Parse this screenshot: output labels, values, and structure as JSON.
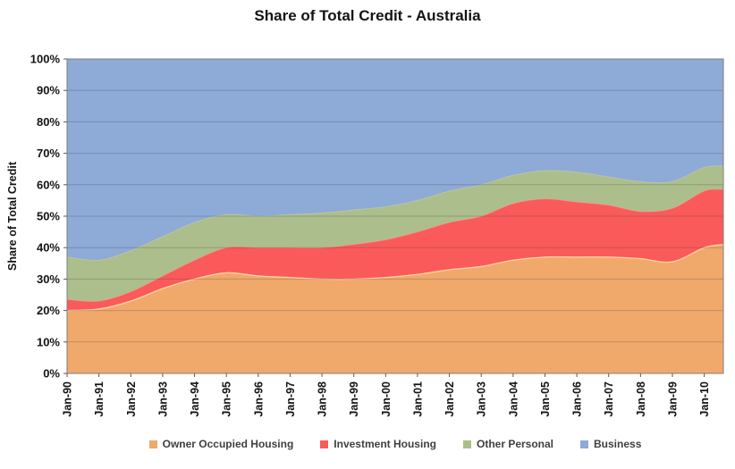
{
  "title": "Share of Total Credit - Australia",
  "y_axis_title": "Share of Total Credit",
  "colors": {
    "owner_occupied": "#F0A96B",
    "investment": "#FA5A5A",
    "other_personal": "#ACBE8B",
    "business": "#8EAAD6",
    "grid_overlay": "rgba(70,70,70,0.28)",
    "plot_border": "#7F7F7F",
    "tick": "#595959",
    "text": "#141414"
  },
  "chart_data": {
    "type": "area",
    "stacked": true,
    "title": "Share of Total Credit - Australia",
    "xlabel": "",
    "ylabel": "Share of Total Credit",
    "ylim": [
      0,
      100
    ],
    "grid": "horizontal",
    "legend_position": "bottom",
    "x": [
      1990,
      1991,
      1992,
      1993,
      1994,
      1995,
      1996,
      1997,
      1998,
      1999,
      2000,
      2001,
      2002,
      2003,
      2004,
      2005,
      2006,
      2007,
      2008,
      2009,
      2010,
      2010.6
    ],
    "x_tick_labels": [
      "Jan-90",
      "Jan-91",
      "Jan-92",
      "Jan-93",
      "Jan-94",
      "Jan-95",
      "Jan-96",
      "Jan-97",
      "Jan-98",
      "Jan-99",
      "Jan-00",
      "Jan-01",
      "Jan-02",
      "Jan-03",
      "Jan-04",
      "Jan-05",
      "Jan-06",
      "Jan-07",
      "Jan-08",
      "Jan-09",
      "Jan-10"
    ],
    "y_tick_labels": [
      "0%",
      "10%",
      "20%",
      "30%",
      "40%",
      "50%",
      "60%",
      "70%",
      "80%",
      "90%",
      "100%"
    ],
    "series": [
      {
        "name": "Owner Occupied Housing",
        "color": "#F0A96B",
        "edge": "#FFDCAE",
        "values": [
          20,
          20.5,
          23,
          27,
          30,
          32,
          31,
          30.5,
          30,
          30,
          30.5,
          31.5,
          33,
          34,
          36,
          37,
          37,
          37,
          36.5,
          35.5,
          40,
          41
        ]
      },
      {
        "name": "Investment Housing",
        "color": "#FA5A5A",
        "edge": "#FF9E9E",
        "values": [
          3.5,
          2.5,
          3,
          4,
          6,
          8,
          9,
          9.5,
          10,
          11,
          12,
          13.5,
          15,
          16,
          18,
          18.5,
          17.5,
          16.5,
          15,
          17,
          18,
          17.5
        ]
      },
      {
        "name": "Other Personal",
        "color": "#ACBE8B",
        "edge": "#C6D4A4",
        "values": [
          13.5,
          13,
          13,
          12.5,
          12,
          10.5,
          10,
          10.5,
          11,
          11,
          10.5,
          10,
          10,
          10,
          9,
          9,
          9.5,
          9,
          9.5,
          8.5,
          7.5,
          7.5
        ]
      },
      {
        "name": "Business",
        "color": "#8EAAD6",
        "edge": "#8EAAD6",
        "values": [
          63,
          64,
          61,
          56.5,
          52,
          49.5,
          50,
          49.5,
          49,
          48,
          47,
          45,
          42,
          40,
          37,
          35.5,
          36,
          37.5,
          39,
          39,
          34.5,
          34
        ]
      }
    ]
  }
}
